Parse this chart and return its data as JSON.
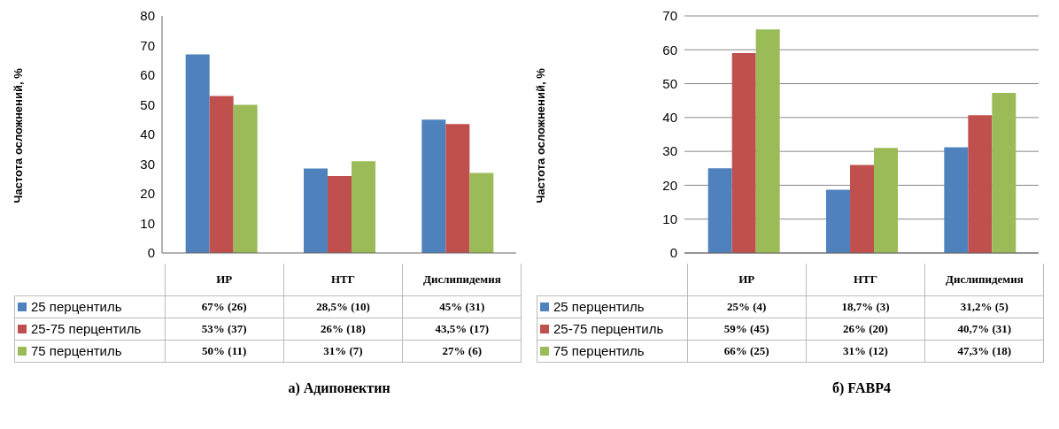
{
  "chart_data": [
    {
      "type": "bar",
      "title": "а) Адипонектин",
      "ylabel": "Частота осложнений, %",
      "categories": [
        "ИР",
        "НТГ",
        "Дислипидемия"
      ],
      "ylim": [
        0,
        80
      ],
      "yticks": [
        0,
        10,
        20,
        30,
        40,
        50,
        60,
        70,
        80
      ],
      "grid": false,
      "legend": "bottom",
      "series": [
        {
          "name": "25 перцентиль",
          "color": "#4f81bd",
          "values": [
            67,
            28.5,
            45
          ],
          "value_labels": [
            "67% (26)",
            "28,5% (10)",
            "45% (31)"
          ]
        },
        {
          "name": "25-75 перцентиль",
          "color": "#c0504d",
          "values": [
            53,
            26,
            43.5
          ],
          "value_labels": [
            "53% (37)",
            "26% (18)",
            "43,5% (17)"
          ]
        },
        {
          "name": "75 перцентиль",
          "color": "#9bbb59",
          "values": [
            50,
            31,
            27
          ],
          "value_labels": [
            "50% (11)",
            "31% (7)",
            "27% (6)"
          ]
        }
      ]
    },
    {
      "type": "bar",
      "title": "б) FABP4",
      "ylabel": "Частота осложнений, %",
      "categories": [
        "ИР",
        "НТГ",
        "Дислипидемия"
      ],
      "ylim": [
        0,
        70
      ],
      "yticks": [
        0,
        10,
        20,
        30,
        40,
        50,
        60,
        70
      ],
      "grid": "y",
      "legend": "bottom",
      "series": [
        {
          "name": "25 перцентиль",
          "color": "#4f81bd",
          "values": [
            25,
            18.7,
            31.2
          ],
          "value_labels": [
            "25% (4)",
            "18,7% (3)",
            "31,2% (5)"
          ]
        },
        {
          "name": "25-75 перцентиль",
          "color": "#c0504d",
          "values": [
            59,
            26,
            40.7
          ],
          "value_labels": [
            "59% (45)",
            "26% (20)",
            "40,7% (31)"
          ]
        },
        {
          "name": "75 перцентиль",
          "color": "#9bbb59",
          "values": [
            66,
            31,
            47.3
          ],
          "value_labels": [
            "66% (25)",
            "31% (12)",
            "47,3% (18)"
          ]
        }
      ]
    }
  ]
}
